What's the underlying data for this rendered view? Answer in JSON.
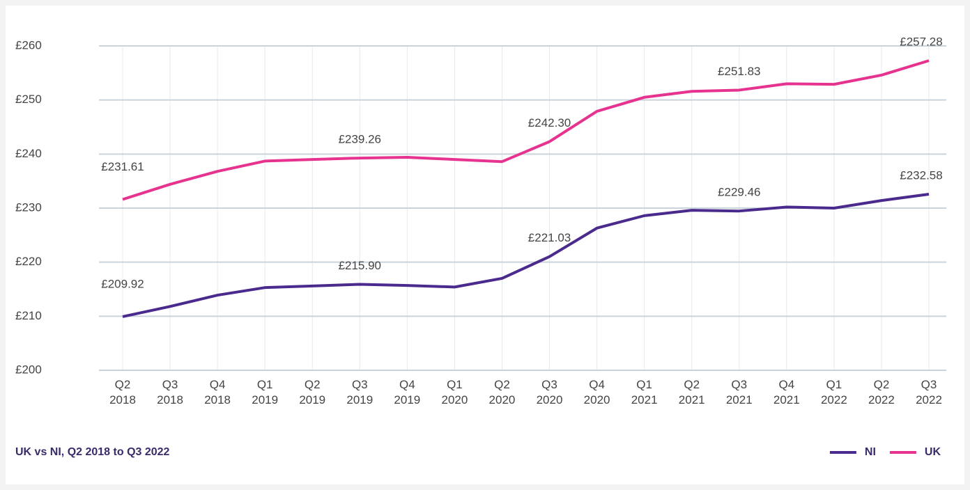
{
  "chart_data": {
    "type": "line",
    "caption": "UK vs NI, Q2 2018 to Q3 2022",
    "categories": [
      "Q2 2018",
      "Q3 2018",
      "Q4 2018",
      "Q1 2019",
      "Q2 2019",
      "Q3 2019",
      "Q4 2019",
      "Q1 2020",
      "Q2 2020",
      "Q3 2020",
      "Q4 2020",
      "Q1 2021",
      "Q2 2021",
      "Q3 2021",
      "Q4 2021",
      "Q1 2022",
      "Q2 2022",
      "Q3 2022"
    ],
    "series": [
      {
        "name": "NI",
        "color": "#4b2a8e",
        "values": [
          209.92,
          211.8,
          213.9,
          215.3,
          215.6,
          215.9,
          215.7,
          215.4,
          217.0,
          221.03,
          226.3,
          228.6,
          229.6,
          229.46,
          230.2,
          230.0,
          231.4,
          232.58
        ],
        "value_labels": [
          "£209.92",
          null,
          null,
          null,
          null,
          "£215.90",
          null,
          null,
          null,
          "£221.03",
          null,
          null,
          null,
          "£229.46",
          null,
          null,
          null,
          "£232.58"
        ]
      },
      {
        "name": "UK",
        "color": "#e6338f",
        "values": [
          231.61,
          234.4,
          236.8,
          238.7,
          239.0,
          239.26,
          239.4,
          239.0,
          238.6,
          242.3,
          247.9,
          250.5,
          251.6,
          251.83,
          253.0,
          252.9,
          254.6,
          257.28
        ],
        "value_labels": [
          "£231.61",
          null,
          null,
          null,
          null,
          "£239.26",
          null,
          null,
          null,
          "£242.30",
          null,
          null,
          null,
          "£251.83",
          null,
          null,
          null,
          "£257.28"
        ]
      }
    ],
    "ylim": [
      200,
      260
    ],
    "yticks": [
      {
        "value": 200,
        "label": "£200"
      },
      {
        "value": 210,
        "label": "£210"
      },
      {
        "value": 220,
        "label": "£220"
      },
      {
        "value": 230,
        "label": "£230"
      },
      {
        "value": 240,
        "label": "£240"
      },
      {
        "value": 250,
        "label": "£250"
      },
      {
        "value": 260,
        "label": "£260"
      }
    ],
    "grid": true,
    "legend": "bottom-right"
  }
}
